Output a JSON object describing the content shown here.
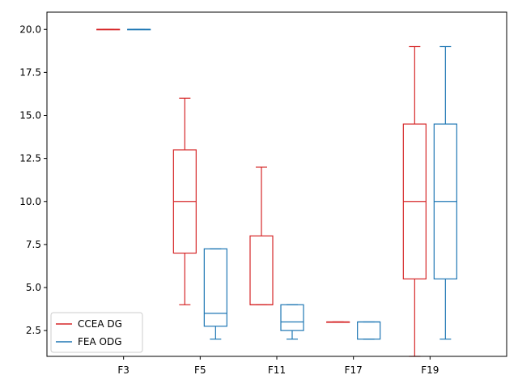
{
  "chart_data": {
    "type": "box",
    "categories": [
      "F3",
      "F5",
      "F11",
      "F17",
      "F19"
    ],
    "series": [
      {
        "name": "CCEA DG",
        "color": "#d62728",
        "boxes": [
          {
            "min": 20,
            "q1": 20,
            "median": 20,
            "q3": 20,
            "max": 20
          },
          {
            "min": 4,
            "q1": 7,
            "median": 10,
            "q3": 13,
            "max": 16
          },
          {
            "min": 4,
            "q1": 4,
            "median": 4,
            "q3": 8,
            "max": 12
          },
          {
            "min": 3,
            "q1": 3,
            "median": 3,
            "q3": 3,
            "max": 3
          },
          {
            "min": 1,
            "q1": 5.5,
            "median": 10,
            "q3": 14.5,
            "max": 19
          }
        ]
      },
      {
        "name": "FEA ODG",
        "color": "#1f77b4",
        "boxes": [
          {
            "min": 20,
            "q1": 20,
            "median": 20,
            "q3": 20,
            "max": 20
          },
          {
            "min": 2,
            "q1": 2.75,
            "median": 3.5,
            "q3": 7.25,
            "max": 7.25
          },
          {
            "min": 2,
            "q1": 2.5,
            "median": 3,
            "q3": 4,
            "max": 4
          },
          {
            "min": 2,
            "q1": 2,
            "median": 3,
            "q3": 3,
            "max": 3
          },
          {
            "min": 2,
            "q1": 5.5,
            "median": 10,
            "q3": 14.5,
            "max": 19
          }
        ]
      }
    ],
    "title": "",
    "xlabel": "",
    "ylabel": "",
    "ylim": [
      1.0,
      21.0
    ],
    "yticks": [
      2.5,
      5.0,
      7.5,
      10.0,
      12.5,
      15.0,
      17.5,
      20.0
    ],
    "ytick_labels": [
      "2.5",
      "5.0",
      "7.5",
      "10.0",
      "12.5",
      "15.0",
      "17.5",
      "20.0"
    ],
    "grid": false,
    "legend_position": "lower-left"
  }
}
